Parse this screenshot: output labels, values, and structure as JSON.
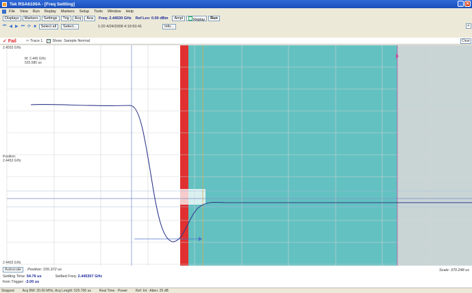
{
  "window": {
    "title": "Tek RSA6100A - [Freq Settling]"
  },
  "menu": [
    "File",
    "View",
    "Run",
    "Replay",
    "Markers",
    "Setup",
    "Tools",
    "Window",
    "Help"
  ],
  "toolbar": {
    "displays": "Displays",
    "markers": "Markers",
    "settings": "Settings",
    "trig": "Trig",
    "acq": "Acq",
    "ana": "Ana",
    "freq": "Freq: 2.44530 GHz",
    "reflev": "Ref Lev: 0.00 dBm",
    "ampl": "Ampl",
    "replay": "Replay",
    "run": "Run"
  },
  "controls": {
    "select_all": "Select all",
    "select": "Select...",
    "counter": "1:20  4/24/2008 4:19:50.41",
    "info": "Info..."
  },
  "trace": {
    "status": "Fail",
    "trace_label": "Trace 1",
    "show_label": "Show",
    "mode": "Sample Normal",
    "clear": "Clear"
  },
  "plot": {
    "y_top": "2.4503 GHz",
    "y_mid_label": "Position:",
    "y_mid_value": "2.4453 GHz",
    "y_bottom": "2.4403 GHz",
    "marker_readout_1": "M: 2.445 GHz",
    "marker_readout_2": "525.580 us",
    "position_readout": "Position: 155.372 us",
    "scale_readout": "Scale: 370.248 us",
    "colors": {
      "pass_region": "#63c1c1",
      "fail_band": "#e03030",
      "masked_region": "#c8d4d4",
      "trace": "#303a8a"
    }
  },
  "summary": {
    "autoscale": "Autoscale",
    "settling_time_label": "Settling Time:",
    "settling_time_value": "54.76 us",
    "settled_freq_label": "Settled Freq:",
    "settled_freq_value": "2.445307 GHz",
    "from_trigger_label": "from Trigger:",
    "from_trigger_value": "-3.00 us"
  },
  "status": [
    "Stopped",
    "Acq BW: 20.00 MHz, Acq Length: 525.700 us",
    "Real Time · Power",
    "Ref: Int · Atten: 25 dB"
  ]
}
